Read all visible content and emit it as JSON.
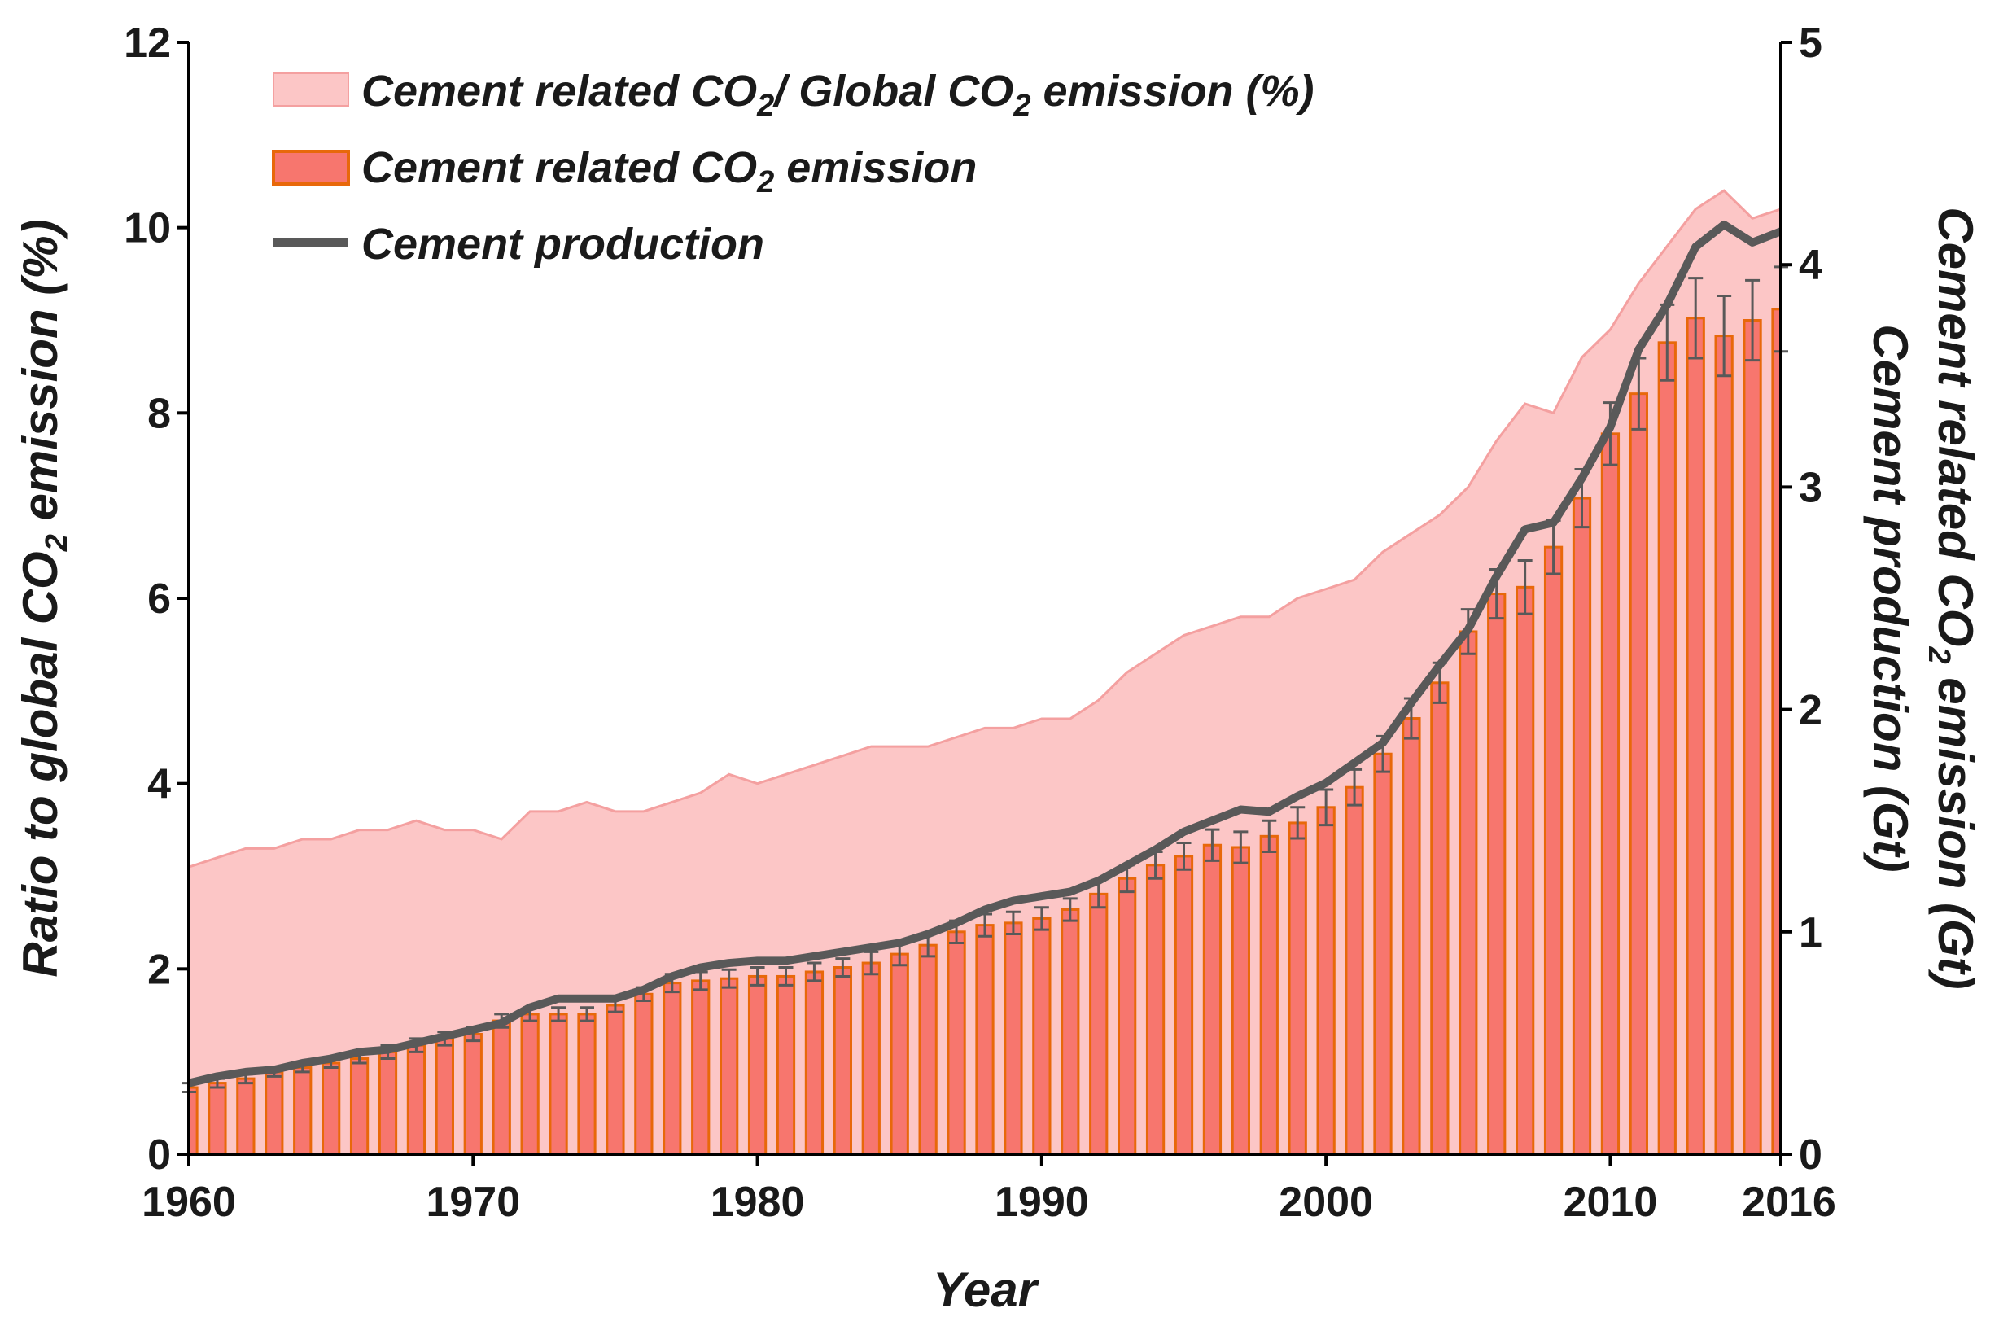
{
  "colors": {
    "ratio_fill": "#fcc6c6",
    "ratio_stroke": "#f4a0a0",
    "bar_fill": "#f7766e",
    "bar_stroke": "#e8680a",
    "line": "#595959",
    "error_bar": "#595959",
    "axis": "#000000"
  },
  "chart_data": {
    "type": "bar",
    "x_axis": {
      "label": "Year",
      "range": [
        1960,
        2016
      ],
      "ticks": [
        "1960",
        "1970",
        "1980",
        "1990",
        "2000",
        "2010",
        "2016"
      ]
    },
    "y_axis_left": {
      "label_pre": "Ratio to global CO",
      "label_sub": "2",
      "label_post": " emission (%)",
      "range": [
        0,
        12
      ],
      "ticks": [
        "0",
        "2",
        "4",
        "6",
        "8",
        "10",
        "12"
      ]
    },
    "y_axis_right": {
      "label1_pre": "Cement related CO",
      "label1_sub": "2",
      "label1_post": " emission (Gt)",
      "label2": "Cement production (Gt)",
      "range": [
        0,
        5
      ],
      "ticks": [
        "0",
        "1",
        "2",
        "3",
        "4",
        "5"
      ]
    },
    "legend": {
      "ratio_pre": "Cement related CO",
      "ratio_sub": "2",
      "ratio_mid": "/ Global CO",
      "ratio_sub2": "2",
      "ratio_post": " emission (%)",
      "emission_pre": "Cement related CO",
      "emission_sub": "2",
      "emission_post": " emission",
      "production": "Cement production"
    },
    "years": [
      1960,
      1961,
      1962,
      1963,
      1964,
      1965,
      1966,
      1967,
      1968,
      1969,
      1970,
      1971,
      1972,
      1973,
      1974,
      1975,
      1976,
      1977,
      1978,
      1979,
      1980,
      1981,
      1982,
      1983,
      1984,
      1985,
      1986,
      1987,
      1988,
      1989,
      1990,
      1991,
      1992,
      1993,
      1994,
      1995,
      1996,
      1997,
      1998,
      1999,
      2000,
      2001,
      2002,
      2003,
      2004,
      2005,
      2006,
      2007,
      2008,
      2009,
      2010,
      2011,
      2012,
      2013,
      2014,
      2015,
      2016
    ],
    "series": [
      {
        "name": "Cement related CO2 / Global CO2 emission (%)",
        "type": "area",
        "axis": "left",
        "values": [
          3.1,
          3.2,
          3.3,
          3.3,
          3.4,
          3.4,
          3.5,
          3.5,
          3.6,
          3.5,
          3.5,
          3.4,
          3.7,
          3.7,
          3.8,
          3.7,
          3.7,
          3.8,
          3.9,
          4.1,
          4.0,
          4.1,
          4.2,
          4.3,
          4.4,
          4.4,
          4.4,
          4.5,
          4.6,
          4.6,
          4.7,
          4.7,
          4.9,
          5.2,
          5.4,
          5.6,
          5.7,
          5.8,
          5.8,
          6.0,
          6.1,
          6.2,
          6.5,
          6.7,
          6.9,
          7.2,
          7.7,
          8.1,
          8.0,
          8.6,
          8.9,
          9.4,
          9.8,
          10.2,
          10.4,
          10.1,
          10.2
        ]
      },
      {
        "name": "Cement related CO2 emission (Gt)",
        "type": "bar",
        "axis": "right",
        "values": [
          0.3,
          0.32,
          0.34,
          0.37,
          0.39,
          0.41,
          0.43,
          0.46,
          0.49,
          0.52,
          0.54,
          0.6,
          0.63,
          0.63,
          0.63,
          0.67,
          0.72,
          0.77,
          0.78,
          0.79,
          0.8,
          0.8,
          0.82,
          0.84,
          0.86,
          0.9,
          0.94,
          1.0,
          1.03,
          1.04,
          1.06,
          1.1,
          1.17,
          1.24,
          1.3,
          1.34,
          1.39,
          1.38,
          1.43,
          1.49,
          1.56,
          1.65,
          1.8,
          1.96,
          2.12,
          2.35,
          2.52,
          2.55,
          2.73,
          2.95,
          3.24,
          3.42,
          3.65,
          3.76,
          3.68,
          3.75,
          3.8
        ],
        "error": [
          0.02,
          0.02,
          0.02,
          0.02,
          0.02,
          0.02,
          0.02,
          0.03,
          0.03,
          0.03,
          0.03,
          0.03,
          0.03,
          0.03,
          0.03,
          0.03,
          0.03,
          0.04,
          0.04,
          0.04,
          0.04,
          0.04,
          0.04,
          0.04,
          0.05,
          0.05,
          0.05,
          0.05,
          0.05,
          0.05,
          0.05,
          0.05,
          0.06,
          0.06,
          0.06,
          0.06,
          0.07,
          0.07,
          0.07,
          0.07,
          0.08,
          0.08,
          0.08,
          0.09,
          0.09,
          0.1,
          0.11,
          0.12,
          0.12,
          0.13,
          0.14,
          0.16,
          0.17,
          0.18,
          0.18,
          0.18,
          0.19
        ]
      },
      {
        "name": "Cement production (Gt)",
        "type": "line",
        "axis": "right",
        "values": [
          0.32,
          0.35,
          0.37,
          0.38,
          0.41,
          0.43,
          0.46,
          0.47,
          0.5,
          0.53,
          0.56,
          0.59,
          0.66,
          0.7,
          0.7,
          0.7,
          0.74,
          0.8,
          0.84,
          0.86,
          0.87,
          0.87,
          0.89,
          0.91,
          0.93,
          0.95,
          0.99,
          1.04,
          1.1,
          1.14,
          1.16,
          1.18,
          1.23,
          1.3,
          1.37,
          1.45,
          1.5,
          1.55,
          1.54,
          1.61,
          1.67,
          1.76,
          1.85,
          2.03,
          2.2,
          2.36,
          2.6,
          2.81,
          2.84,
          3.04,
          3.27,
          3.62,
          3.82,
          4.08,
          4.18,
          4.1,
          4.15
        ]
      }
    ]
  }
}
